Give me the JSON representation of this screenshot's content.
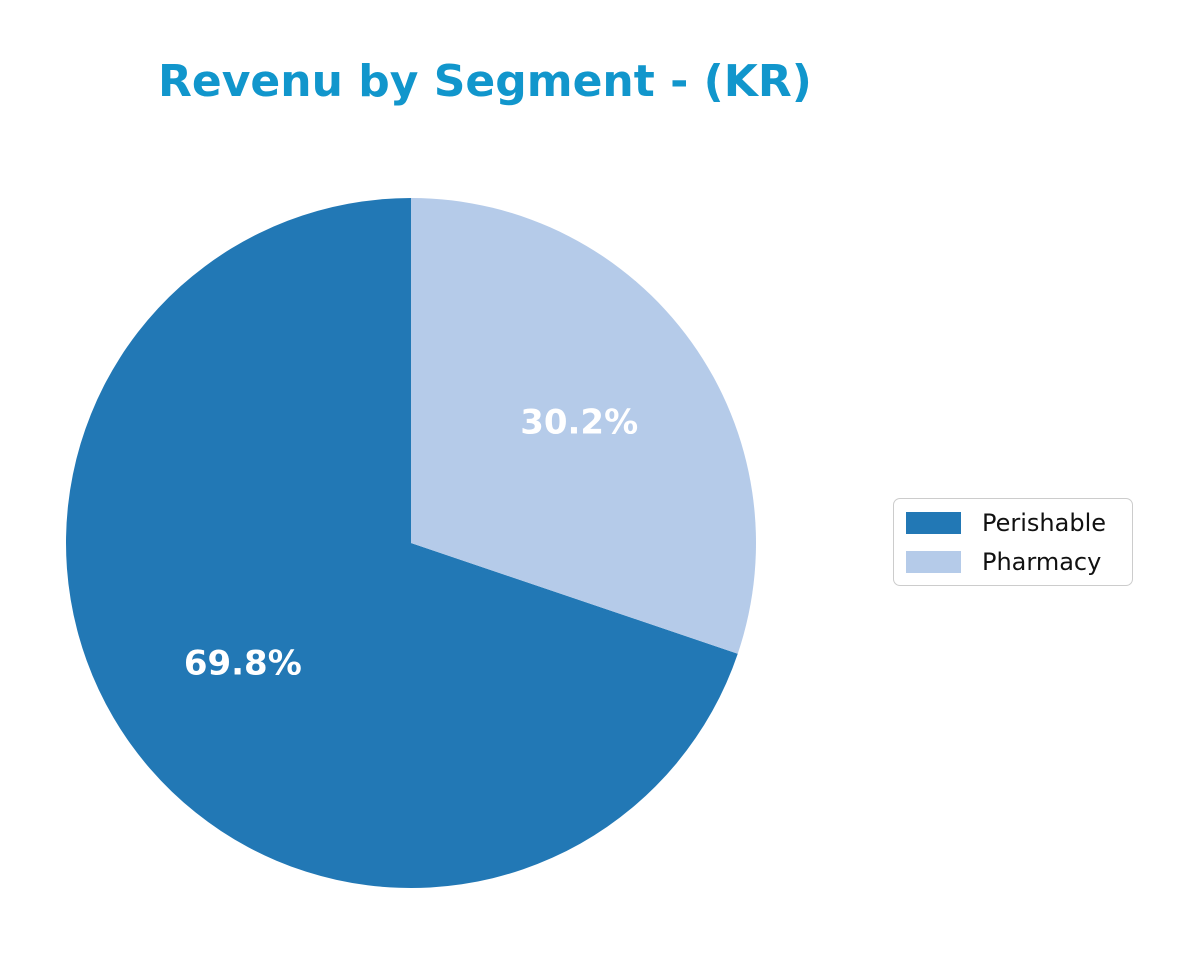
{
  "page": {
    "background": "#ffffff"
  },
  "chart_data": {
    "type": "pie",
    "title": "Revenu by Segment - (KR)",
    "title_color": "#1196cc",
    "start_angle": 90,
    "direction": "counterclockwise",
    "percent_label_color": "#ffffff",
    "legend_position": "center right",
    "slices": [
      {
        "label": "Perishable",
        "value": 69.8,
        "display": "69.8%",
        "color": "#2278b5"
      },
      {
        "label": "Pharmacy",
        "value": 30.2,
        "display": "30.2%",
        "color": "#b5cbe9"
      }
    ],
    "legend_entries": [
      "Perishable",
      "Pharmacy"
    ]
  }
}
